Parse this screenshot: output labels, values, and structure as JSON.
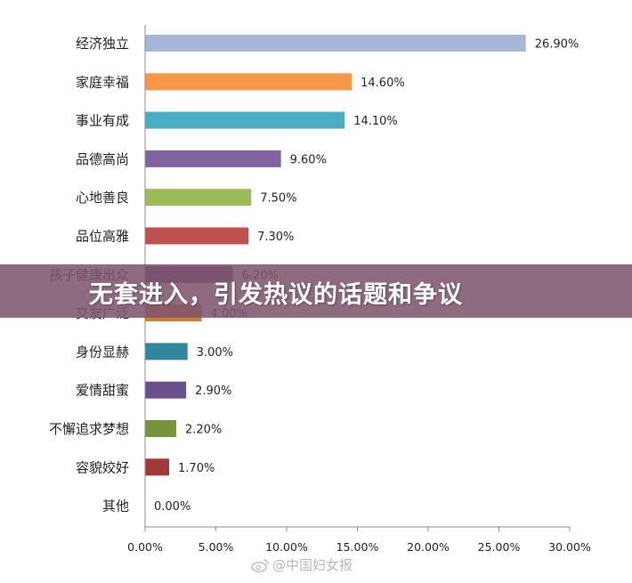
{
  "chart_data": {
    "type": "bar",
    "orientation": "horizontal",
    "categories": [
      "经济独立",
      "家庭幸福",
      "事业有成",
      "品德高尚",
      "心地善良",
      "品位高雅",
      "孩子健康出众",
      "交友广泛",
      "身份显赫",
      "爱情甜蜜",
      "不懈追求梦想",
      "容貌姣好",
      "其他"
    ],
    "values": [
      26.9,
      14.6,
      14.1,
      9.6,
      7.5,
      7.3,
      6.2,
      4.0,
      3.0,
      2.9,
      2.2,
      1.7,
      0.0
    ],
    "value_labels": [
      "26.90%",
      "14.60%",
      "14.10%",
      "9.60%",
      "7.50%",
      "7.30%",
      "6.20%",
      "4.00%",
      "3.00%",
      "2.90%",
      "2.20%",
      "1.70%",
      "0.00%"
    ],
    "colors": [
      "#A7B6D9",
      "#F79646",
      "#4BACC6",
      "#8064A2",
      "#9BBB59",
      "#C0504D",
      "#5B3F74",
      "#D07E2F",
      "#31859C",
      "#6A4F8C",
      "#77933C",
      "#A33836",
      "#4F81BD"
    ],
    "x_ticks": [
      "0.00%",
      "5.00%",
      "10.00%",
      "15.00%",
      "20.00%",
      "25.00%",
      "30.00%"
    ],
    "xlim": [
      0,
      30
    ],
    "title": "",
    "xlabel": "",
    "ylabel": "",
    "grid": false,
    "legend": "none"
  },
  "overlay": {
    "banner_text": "无套进入，引发热议的话题和争议",
    "banner_color": "#80566E"
  },
  "watermark": {
    "text": "@中国妇女报",
    "icon": "weibo-icon"
  }
}
